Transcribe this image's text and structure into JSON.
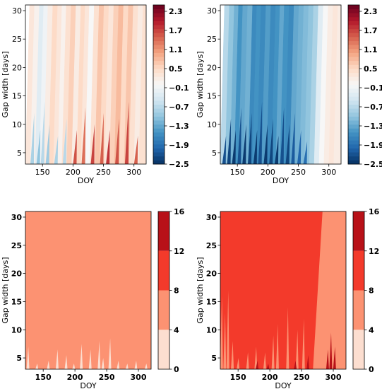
{
  "chart_data": [
    {
      "type": "heatmap",
      "panel": "top-left",
      "xlabel": "DOY",
      "ylabel": "Gap width [days]",
      "xlim": [
        122,
        320
      ],
      "ylim": [
        3,
        31
      ],
      "xticks": [
        150,
        200,
        250,
        300
      ],
      "yticks": [
        5,
        10,
        15,
        20,
        25,
        30
      ],
      "colorbar": {
        "colormap": "RdBu_r",
        "range": [
          -2.5,
          2.5
        ],
        "tick_labels": [
          "2.3",
          "1.7",
          "1.1",
          "0.5",
          "−0.1",
          "−0.7",
          "−1.3",
          "−1.9",
          "−2.5"
        ],
        "tick_values": [
          2.3,
          1.7,
          1.1,
          0.5,
          -0.1,
          -0.7,
          -1.3,
          -1.9,
          -2.5
        ]
      },
      "columns": [
        {
          "doy_start": 122,
          "doy_end": 130,
          "value": 0.3
        },
        {
          "doy_start": 130,
          "doy_end": 138,
          "value": 0.1
        },
        {
          "doy_start": 138,
          "doy_end": 145,
          "value": -0.3
        },
        {
          "doy_start": 145,
          "doy_end": 152,
          "value": -0.1
        },
        {
          "doy_start": 152,
          "doy_end": 160,
          "value": 0.2
        },
        {
          "doy_start": 160,
          "doy_end": 168,
          "value": 0.5
        },
        {
          "doy_start": 168,
          "doy_end": 175,
          "value": 0.3
        },
        {
          "doy_start": 175,
          "doy_end": 182,
          "value": 0.1
        },
        {
          "doy_start": 182,
          "doy_end": 190,
          "value": 0.4
        },
        {
          "doy_start": 190,
          "doy_end": 198,
          "value": 0.6
        },
        {
          "doy_start": 198,
          "doy_end": 206,
          "value": 0.2
        },
        {
          "doy_start": 206,
          "doy_end": 213,
          "value": 0.5
        },
        {
          "doy_start": 213,
          "doy_end": 220,
          "value": 0.3
        },
        {
          "doy_start": 220,
          "doy_end": 228,
          "value": 0.0
        },
        {
          "doy_start": 228,
          "doy_end": 236,
          "value": 0.4
        },
        {
          "doy_start": 236,
          "doy_end": 244,
          "value": 0.7
        },
        {
          "doy_start": 244,
          "doy_end": 252,
          "value": 0.5
        },
        {
          "doy_start": 252,
          "doy_end": 260,
          "value": 0.3
        },
        {
          "doy_start": 260,
          "doy_end": 268,
          "value": 0.6
        },
        {
          "doy_start": 268,
          "doy_end": 276,
          "value": 0.8
        },
        {
          "doy_start": 276,
          "doy_end": 284,
          "value": 0.5
        },
        {
          "doy_start": 284,
          "doy_end": 292,
          "value": 0.7
        },
        {
          "doy_start": 292,
          "doy_end": 300,
          "value": 0.4
        },
        {
          "doy_start": 300,
          "doy_end": 308,
          "value": 0.2
        },
        {
          "doy_start": 308,
          "doy_end": 320,
          "value": 0.4
        }
      ],
      "streaks": [
        {
          "doy": 133,
          "gap_max": 12,
          "value": -0.8
        },
        {
          "doy": 143,
          "gap_max": 9,
          "value": -1.0
        },
        {
          "doy": 150,
          "gap_max": 14,
          "value": -0.7
        },
        {
          "doy": 158,
          "gap_max": 10,
          "value": -0.9
        },
        {
          "doy": 172,
          "gap_max": 8,
          "value": -0.8
        },
        {
          "doy": 186,
          "gap_max": 11,
          "value": -0.7
        },
        {
          "doy": 203,
          "gap_max": 9,
          "value": 1.6
        },
        {
          "doy": 217,
          "gap_max": 13,
          "value": 1.4
        },
        {
          "doy": 232,
          "gap_max": 10,
          "value": 1.7
        },
        {
          "doy": 247,
          "gap_max": 12,
          "value": 1.5
        },
        {
          "doy": 257,
          "gap_max": 9,
          "value": 1.8
        },
        {
          "doy": 272,
          "gap_max": 11,
          "value": 1.6
        },
        {
          "doy": 288,
          "gap_max": 14,
          "value": 1.7
        },
        {
          "doy": 303,
          "gap_max": 8,
          "value": 1.5
        }
      ]
    },
    {
      "type": "heatmap",
      "panel": "top-right",
      "xlabel": "DOY",
      "ylabel": "Gap width [days]",
      "xlim": [
        122,
        320
      ],
      "ylim": [
        3,
        31
      ],
      "xticks": [
        150,
        200,
        250,
        300
      ],
      "yticks": [
        5,
        10,
        15,
        20,
        25,
        30
      ],
      "colorbar": {
        "colormap": "RdBu_r",
        "range": [
          -2.5,
          2.5
        ],
        "tick_labels": [
          "2.3",
          "1.7",
          "1.1",
          "0.5",
          "−0.1",
          "−0.7",
          "−1.3",
          "−1.9",
          "−2.5"
        ],
        "tick_values": [
          2.3,
          1.7,
          1.1,
          0.5,
          -0.1,
          -0.7,
          -1.3,
          -1.9,
          -2.5
        ]
      },
      "columns": [
        {
          "doy_start": 122,
          "doy_end": 130,
          "value": -0.7
        },
        {
          "doy_start": 130,
          "doy_end": 138,
          "value": -1.0
        },
        {
          "doy_start": 138,
          "doy_end": 145,
          "value": -1.2
        },
        {
          "doy_start": 145,
          "doy_end": 152,
          "value": -1.5
        },
        {
          "doy_start": 152,
          "doy_end": 160,
          "value": -1.3
        },
        {
          "doy_start": 160,
          "doy_end": 168,
          "value": -1.2
        },
        {
          "doy_start": 168,
          "doy_end": 175,
          "value": -1.6
        },
        {
          "doy_start": 175,
          "doy_end": 182,
          "value": -1.5
        },
        {
          "doy_start": 182,
          "doy_end": 190,
          "value": -1.6
        },
        {
          "doy_start": 190,
          "doy_end": 198,
          "value": -1.4
        },
        {
          "doy_start": 198,
          "doy_end": 206,
          "value": -1.6
        },
        {
          "doy_start": 206,
          "doy_end": 213,
          "value": -1.5
        },
        {
          "doy_start": 213,
          "doy_end": 220,
          "value": -1.3
        },
        {
          "doy_start": 220,
          "doy_end": 228,
          "value": -1.5
        },
        {
          "doy_start": 228,
          "doy_end": 236,
          "value": -1.6
        },
        {
          "doy_start": 236,
          "doy_end": 244,
          "value": -1.3
        },
        {
          "doy_start": 244,
          "doy_end": 252,
          "value": -1.2
        },
        {
          "doy_start": 252,
          "doy_end": 260,
          "value": -1.1
        },
        {
          "doy_start": 260,
          "doy_end": 268,
          "value": -1.0
        },
        {
          "doy_start": 268,
          "doy_end": 276,
          "value": -0.8
        },
        {
          "doy_start": 276,
          "doy_end": 284,
          "value": -0.3
        },
        {
          "doy_start": 284,
          "doy_end": 292,
          "value": 0.0
        },
        {
          "doy_start": 292,
          "doy_end": 300,
          "value": 0.2
        },
        {
          "doy_start": 300,
          "doy_end": 308,
          "value": 0.3
        },
        {
          "doy_start": 308,
          "doy_end": 320,
          "value": 0.2
        }
      ],
      "streaks": [
        {
          "doy": 128,
          "gap_max": 8,
          "value": -2.2
        },
        {
          "doy": 136,
          "gap_max": 11,
          "value": -2.3
        },
        {
          "doy": 144,
          "gap_max": 9,
          "value": -2.4
        },
        {
          "doy": 153,
          "gap_max": 13,
          "value": -2.2
        },
        {
          "doy": 161,
          "gap_max": 10,
          "value": -2.4
        },
        {
          "doy": 170,
          "gap_max": 12,
          "value": -2.3
        },
        {
          "doy": 179,
          "gap_max": 9,
          "value": -2.4
        },
        {
          "doy": 187,
          "gap_max": 14,
          "value": -2.2
        },
        {
          "doy": 196,
          "gap_max": 10,
          "value": -2.4
        },
        {
          "doy": 205,
          "gap_max": 11,
          "value": -2.3
        },
        {
          "doy": 214,
          "gap_max": 8,
          "value": -2.4
        },
        {
          "doy": 223,
          "gap_max": 13,
          "value": -2.2
        },
        {
          "doy": 232,
          "gap_max": 10,
          "value": -2.3
        },
        {
          "doy": 241,
          "gap_max": 12,
          "value": -2.1
        },
        {
          "doy": 251,
          "gap_max": 9,
          "value": -2.0
        },
        {
          "doy": 261,
          "gap_max": 7,
          "value": -1.9
        }
      ]
    },
    {
      "type": "heatmap",
      "panel": "bottom-left",
      "xlabel": "DOY",
      "ylabel": "Gap width [days]",
      "xlim": [
        122,
        320
      ],
      "ylim": [
        3,
        31
      ],
      "xticks": [
        150,
        200,
        250,
        300
      ],
      "yticks": [
        5,
        10,
        15,
        20,
        25,
        30
      ],
      "colorbar": {
        "colormap": "Reds",
        "range": [
          0,
          16
        ],
        "tick_labels": [
          "16",
          "12",
          "8",
          "4",
          "0"
        ],
        "tick_values": [
          16,
          12,
          8,
          4,
          0
        ],
        "levels": [
          0,
          4,
          8,
          12,
          16
        ]
      },
      "background_value": 6,
      "spikes": [
        {
          "doy": 126,
          "gap_max": 7.0,
          "value": 2
        },
        {
          "doy": 140,
          "gap_max": 4.0,
          "value": 2
        },
        {
          "doy": 158,
          "gap_max": 4.5,
          "value": 2
        },
        {
          "doy": 172,
          "gap_max": 6.5,
          "value": 2
        },
        {
          "doy": 186,
          "gap_max": 5.5,
          "value": 2
        },
        {
          "doy": 198,
          "gap_max": 4.0,
          "value": 2
        },
        {
          "doy": 210,
          "gap_max": 7.5,
          "value": 2
        },
        {
          "doy": 224,
          "gap_max": 6.5,
          "value": 2
        },
        {
          "doy": 238,
          "gap_max": 8.0,
          "value": 2
        },
        {
          "doy": 244,
          "gap_max": 5.0,
          "value": 2
        },
        {
          "doy": 255,
          "gap_max": 8.5,
          "value": 2
        },
        {
          "doy": 268,
          "gap_max": 4.5,
          "value": 2
        },
        {
          "doy": 282,
          "gap_max": 4.0,
          "value": 2
        },
        {
          "doy": 296,
          "gap_max": 4.5,
          "value": 2
        },
        {
          "doy": 312,
          "gap_max": 4.0,
          "value": 2
        }
      ]
    },
    {
      "type": "heatmap",
      "panel": "bottom-right",
      "xlabel": "DOY",
      "ylabel": "Gap width [days]",
      "xlim": [
        122,
        320
      ],
      "ylim": [
        3,
        31
      ],
      "xticks": [
        150,
        200,
        250,
        300
      ],
      "yticks": [
        5,
        10,
        15,
        20,
        25,
        30
      ],
      "colorbar": {
        "colormap": "Reds",
        "range": [
          0,
          16
        ],
        "tick_labels": [
          "16",
          "12",
          "8",
          "4",
          "0"
        ],
        "tick_values": [
          16,
          12,
          8,
          4,
          0
        ],
        "levels": [
          0,
          4,
          8,
          12,
          16
        ]
      },
      "background_value": 10,
      "right_region": {
        "value": 6,
        "boundary_top_doy": 283,
        "boundary_bottom_doy": 268
      },
      "spikes": [
        {
          "doy": 124,
          "gap_max": 16,
          "value": 6
        },
        {
          "doy": 129,
          "gap_max": 13,
          "value": 6
        },
        {
          "doy": 134,
          "gap_max": 17,
          "value": 6
        },
        {
          "doy": 141,
          "gap_max": 8,
          "value": 6
        },
        {
          "doy": 150,
          "gap_max": 5,
          "value": 6
        },
        {
          "doy": 165,
          "gap_max": 6,
          "value": 6
        },
        {
          "doy": 178,
          "gap_max": 7,
          "value": 6
        },
        {
          "doy": 192,
          "gap_max": 6,
          "value": 6
        },
        {
          "doy": 205,
          "gap_max": 9,
          "value": 6
        },
        {
          "doy": 212,
          "gap_max": 11,
          "value": 6
        },
        {
          "doy": 228,
          "gap_max": 14,
          "value": 6
        },
        {
          "doy": 243,
          "gap_max": 10,
          "value": 6
        },
        {
          "doy": 253,
          "gap_max": 12,
          "value": 6
        }
      ],
      "dark_spikes": [
        {
          "doy": 180,
          "gap_max": 4.5,
          "value": 14
        },
        {
          "doy": 197,
          "gap_max": 4.0,
          "value": 14
        },
        {
          "doy": 240,
          "gap_max": 4.5,
          "value": 14
        },
        {
          "doy": 260,
          "gap_max": 5.5,
          "value": 14
        },
        {
          "doy": 291,
          "gap_max": 6.5,
          "value": 14
        },
        {
          "doy": 296,
          "gap_max": 9.5,
          "value": 12
        },
        {
          "doy": 302,
          "gap_max": 7.0,
          "value": 14
        }
      ]
    }
  ]
}
